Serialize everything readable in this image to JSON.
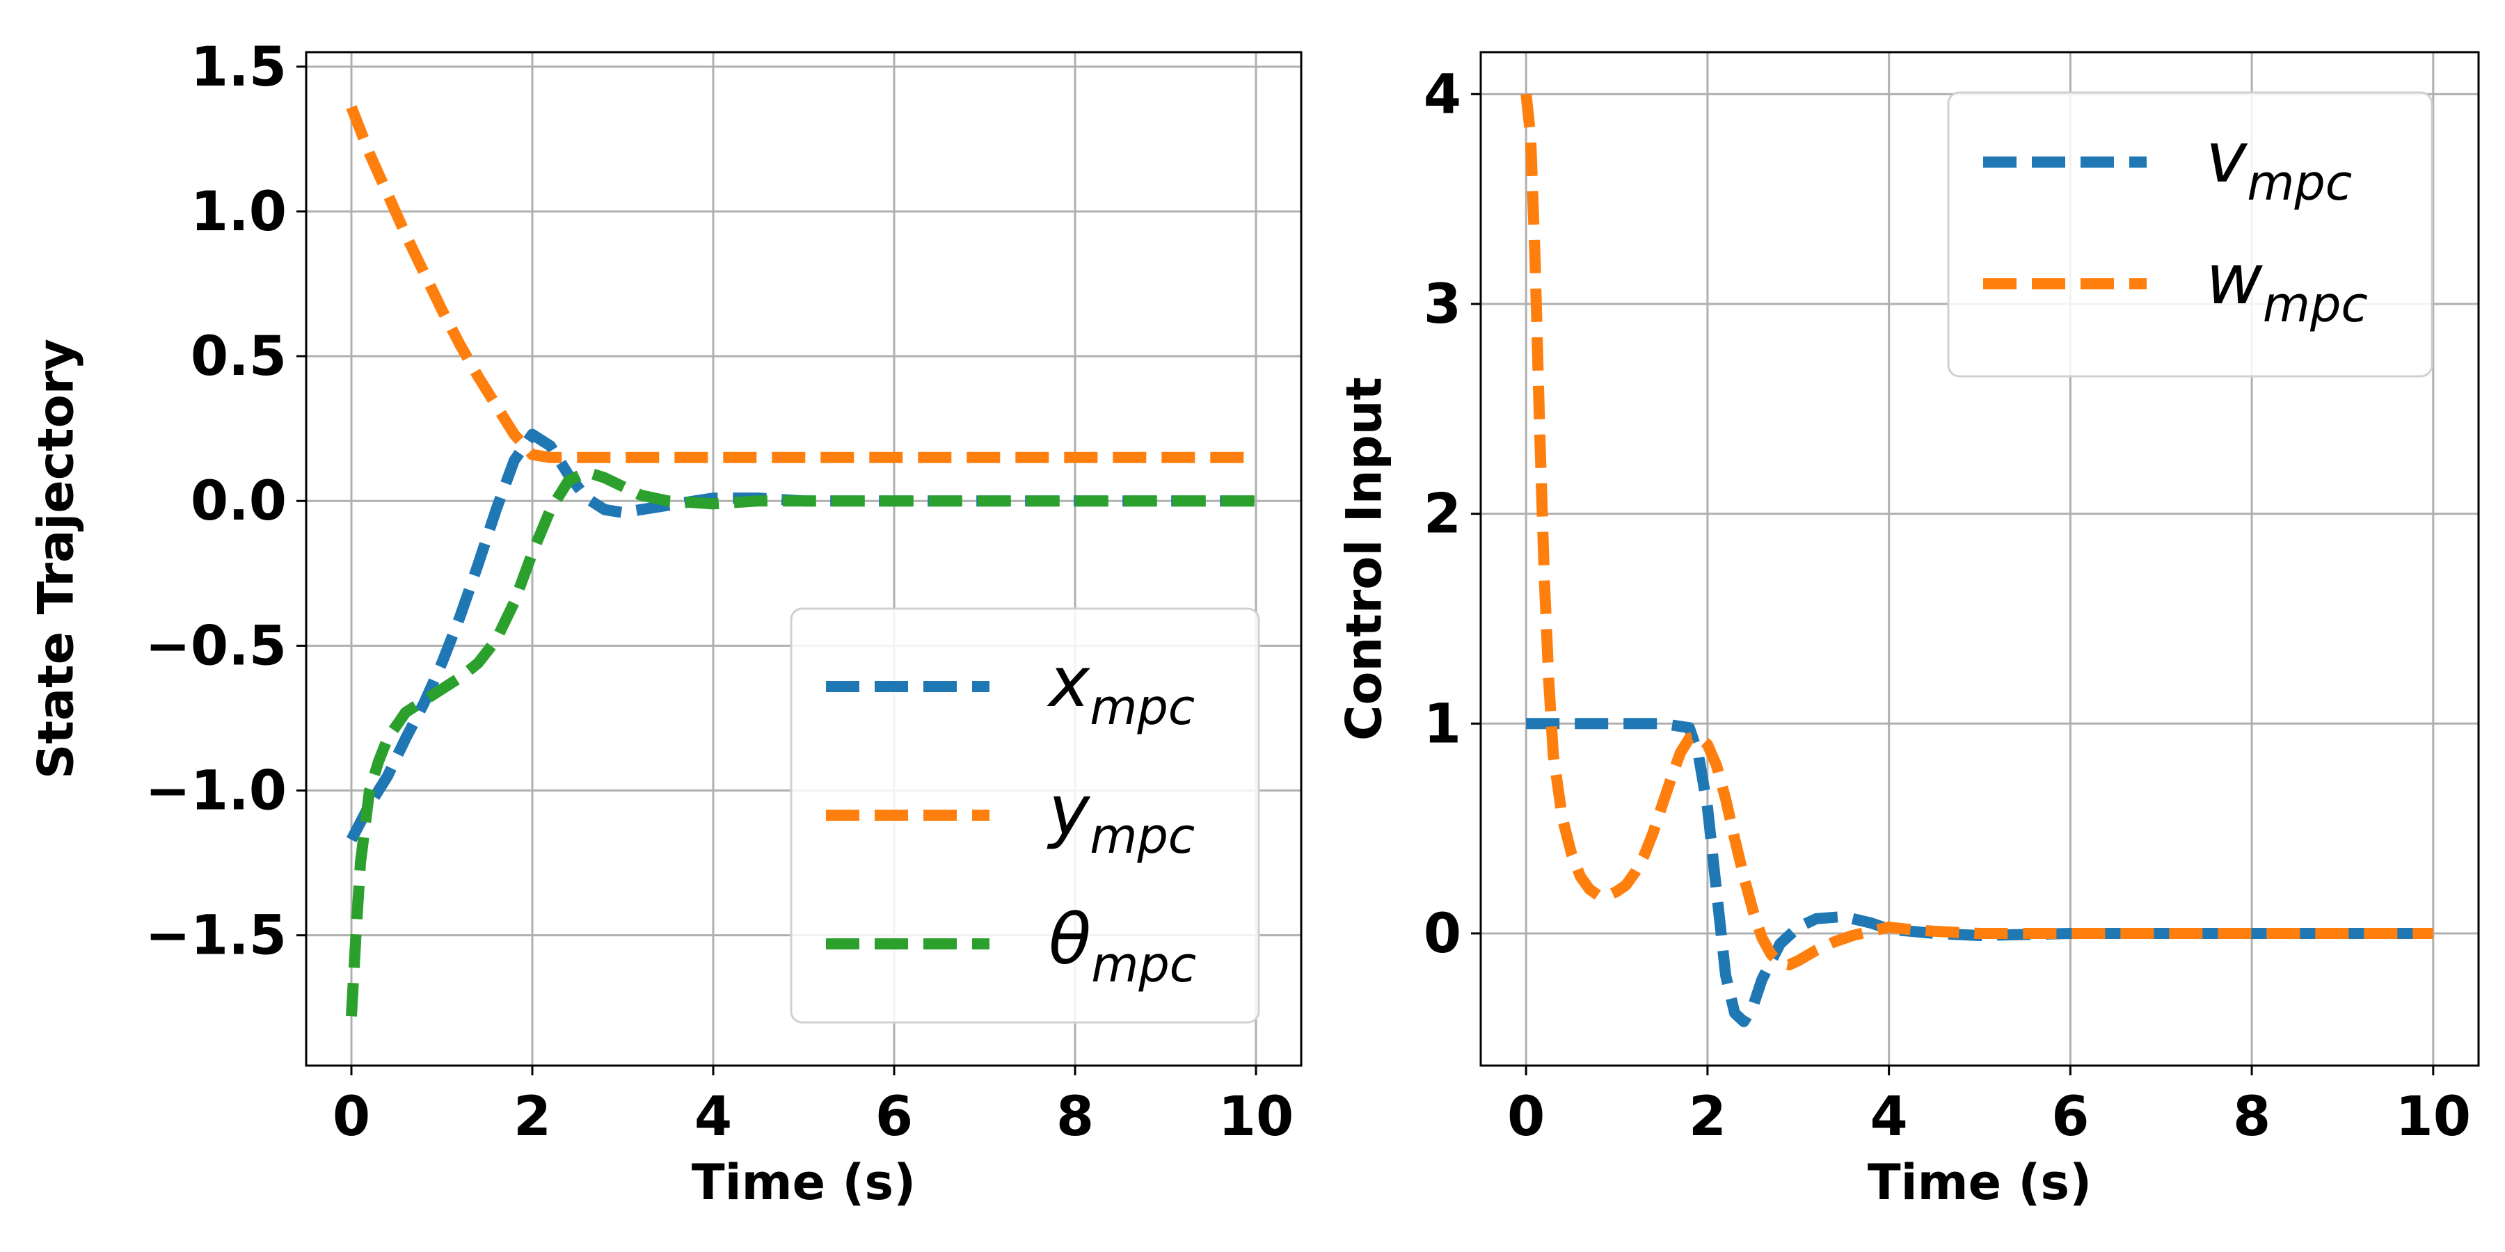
{
  "colors": {
    "blue": "#1f77b4",
    "orange": "#ff7f0e",
    "green": "#2ca02c",
    "grid": "#b0b0b0"
  },
  "chart_data": [
    {
      "type": "line",
      "title": "",
      "xlabel": "Time (s)",
      "ylabel": "State Trajectory",
      "xlim": [
        -0.5,
        10.5
      ],
      "ylim": [
        -1.95,
        1.55
      ],
      "xticks": [
        0,
        2,
        4,
        6,
        8,
        10
      ],
      "xtick_labels": [
        "0",
        "2",
        "4",
        "6",
        "8",
        "10"
      ],
      "yticks": [
        -1.5,
        -1.0,
        -0.5,
        0.0,
        0.5,
        1.0,
        1.5
      ],
      "ytick_labels": [
        "−1.5",
        "−1.0",
        "−0.5",
        "0.0",
        "0.5",
        "1.0",
        "1.5"
      ],
      "grid": true,
      "legend_position": "lower-right",
      "series": [
        {
          "name": "x",
          "sub": "mpc",
          "color": "blue",
          "x": [
            0,
            0.2,
            0.4,
            0.6,
            0.8,
            1.0,
            1.2,
            1.4,
            1.6,
            1.8,
            2.0,
            2.2,
            2.4,
            2.6,
            2.8,
            3.0,
            3.2,
            3.4,
            3.6,
            3.8,
            4.0,
            4.5,
            5.0,
            6.0,
            7.0,
            8.0,
            9.0,
            10.0
          ],
          "y": [
            -1.17,
            -1.05,
            -0.95,
            -0.82,
            -0.7,
            -0.56,
            -0.4,
            -0.22,
            -0.03,
            0.14,
            0.23,
            0.19,
            0.09,
            0.01,
            -0.03,
            -0.04,
            -0.03,
            -0.02,
            -0.01,
            0.0,
            0.01,
            0.01,
            0.0,
            0.0,
            0.0,
            0.0,
            0.0,
            0.0
          ]
        },
        {
          "name": "y",
          "sub": "mpc",
          "color": "orange",
          "x": [
            0,
            0.2,
            0.4,
            0.6,
            0.8,
            1.0,
            1.2,
            1.4,
            1.6,
            1.8,
            2.0,
            2.2,
            2.5,
            3.0,
            4.0,
            5.0,
            6.0,
            7.0,
            8.0,
            9.0,
            10.0
          ],
          "y": [
            1.36,
            1.2,
            1.06,
            0.92,
            0.79,
            0.66,
            0.54,
            0.43,
            0.33,
            0.23,
            0.16,
            0.15,
            0.15,
            0.15,
            0.15,
            0.15,
            0.15,
            0.15,
            0.15,
            0.15,
            0.15
          ]
        },
        {
          "name": "θ",
          "sub": "mpc",
          "color": "green",
          "x": [
            0,
            0.05,
            0.1,
            0.2,
            0.3,
            0.4,
            0.6,
            0.8,
            1.0,
            1.2,
            1.4,
            1.6,
            1.8,
            2.0,
            2.2,
            2.4,
            2.6,
            2.8,
            3.0,
            3.2,
            3.5,
            4.0,
            4.5,
            5.0,
            6.0,
            7.0,
            8.0,
            9.0,
            10.0
          ],
          "y": [
            -1.78,
            -1.5,
            -1.25,
            -1.0,
            -0.9,
            -0.82,
            -0.73,
            -0.69,
            -0.65,
            -0.61,
            -0.56,
            -0.48,
            -0.35,
            -0.18,
            -0.03,
            0.07,
            0.1,
            0.08,
            0.05,
            0.02,
            0.0,
            -0.01,
            0.0,
            0.0,
            0.0,
            0.0,
            0.0,
            0.0,
            0.0
          ]
        }
      ]
    },
    {
      "type": "line",
      "title": "",
      "xlabel": "Time (s)",
      "ylabel": "Control Input",
      "xlim": [
        -0.5,
        10.5
      ],
      "ylim": [
        -0.63,
        4.2
      ],
      "xticks": [
        0,
        2,
        4,
        6,
        8,
        10
      ],
      "xtick_labels": [
        "0",
        "2",
        "4",
        "6",
        "8",
        "10"
      ],
      "yticks": [
        0,
        1,
        2,
        3,
        4
      ],
      "ytick_labels": [
        "0",
        "1",
        "2",
        "3",
        "4"
      ],
      "grid": true,
      "legend_position": "upper-right",
      "series": [
        {
          "name": "v",
          "sub": "mpc",
          "color": "blue",
          "x": [
            0,
            0.5,
            1.0,
            1.5,
            1.8,
            1.9,
            2.0,
            2.1,
            2.2,
            2.3,
            2.4,
            2.5,
            2.6,
            2.8,
            3.0,
            3.2,
            3.5,
            3.8,
            4.0,
            4.5,
            5.0,
            6.0,
            7.0,
            8.0,
            9.0,
            10.0
          ],
          "y": [
            1.0,
            1.0,
            1.0,
            1.0,
            0.98,
            0.85,
            0.6,
            0.2,
            -0.2,
            -0.38,
            -0.42,
            -0.35,
            -0.22,
            -0.05,
            0.03,
            0.07,
            0.08,
            0.05,
            0.02,
            0.0,
            -0.01,
            0.0,
            0.0,
            0.0,
            0.0,
            0.0
          ]
        },
        {
          "name": "w",
          "sub": "mpc",
          "color": "orange",
          "x": [
            0.0,
            0.05,
            0.1,
            0.15,
            0.2,
            0.25,
            0.3,
            0.4,
            0.5,
            0.6,
            0.7,
            0.8,
            0.9,
            1.0,
            1.1,
            1.2,
            1.3,
            1.4,
            1.5,
            1.6,
            1.7,
            1.8,
            1.9,
            2.0,
            2.1,
            2.2,
            2.3,
            2.4,
            2.5,
            2.6,
            2.7,
            2.8,
            2.9,
            3.0,
            3.2,
            3.4,
            3.6,
            3.8,
            4.0,
            4.2,
            4.5,
            5.0,
            6.0,
            7.0,
            8.0,
            9.0,
            10.0
          ],
          "y": [
            4.0,
            3.8,
            3.2,
            2.4,
            1.7,
            1.2,
            0.85,
            0.55,
            0.38,
            0.27,
            0.21,
            0.18,
            0.18,
            0.2,
            0.23,
            0.29,
            0.37,
            0.48,
            0.61,
            0.74,
            0.86,
            0.93,
            0.94,
            0.9,
            0.8,
            0.64,
            0.45,
            0.27,
            0.11,
            -0.02,
            -0.1,
            -0.14,
            -0.15,
            -0.13,
            -0.08,
            -0.04,
            -0.01,
            0.01,
            0.03,
            0.02,
            0.01,
            0.0,
            0.0,
            0.0,
            0.0,
            0.0,
            0.0
          ]
        }
      ]
    }
  ]
}
